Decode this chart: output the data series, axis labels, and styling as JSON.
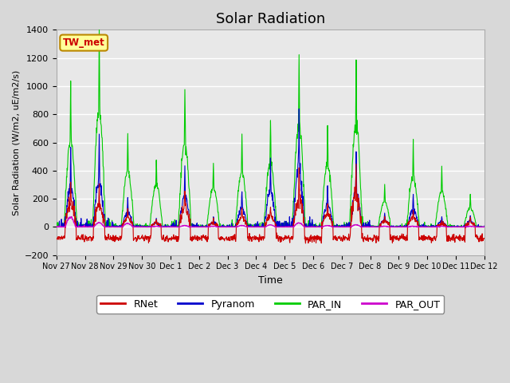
{
  "title": "Solar Radiation",
  "ylabel": "Solar Radiation (W/m2, uE/m2/s)",
  "xlabel": "Time",
  "ylim": [
    -200,
    1400
  ],
  "yticks": [
    -200,
    0,
    200,
    400,
    600,
    800,
    1000,
    1200,
    1400
  ],
  "n_days": 15,
  "xlim_start": 0,
  "xlim_end": 15,
  "x_tick_labels": [
    "Nov 27",
    "Nov 28",
    "Nov 29",
    "Nov 30",
    "Dec 1",
    "Dec 2",
    "Dec 3",
    "Dec 4",
    "Dec 5",
    "Dec 6",
    "Dec 7",
    "Dec 8",
    "Dec 9",
    "Dec 10",
    "Dec 11",
    "Dec 12"
  ],
  "legend_labels": [
    "RNet",
    "Pyranom",
    "PAR_IN",
    "PAR_OUT"
  ],
  "legend_colors": [
    "#cc0000",
    "#0000cc",
    "#00cc00",
    "#cc00cc"
  ],
  "line_colors": {
    "RNet": "#cc0000",
    "Pyranom": "#0000cc",
    "PAR_IN": "#00cc00",
    "PAR_OUT": "#cc00cc"
  },
  "annotation_text": "TW_met",
  "annotation_color": "#cc0000",
  "annotation_bg": "#ffff99",
  "annotation_border": "#bb8800",
  "plot_bg_color": "#e8e8e8",
  "fig_bg_color": "#d8d8d8",
  "grid_color": "#ffffff",
  "title_fontsize": 13,
  "par_in_peaks": [
    1030,
    1400,
    650,
    490,
    980,
    460,
    640,
    760,
    1220,
    730,
    1200,
    300,
    590,
    420,
    225
  ],
  "pyranom_peaks": [
    560,
    620,
    200,
    60,
    430,
    60,
    270,
    500,
    830,
    300,
    500,
    100,
    240,
    70,
    80
  ],
  "rnet_day_peaks": [
    340,
    300,
    130,
    50,
    280,
    50,
    140,
    150,
    400,
    180,
    430,
    80,
    130,
    40,
    60
  ],
  "par_out_peaks": [
    70,
    30,
    25,
    5,
    10,
    5,
    10,
    15,
    30,
    10,
    15,
    5,
    5,
    5,
    5
  ],
  "rnet_night": -80,
  "pts_per_day": 96
}
